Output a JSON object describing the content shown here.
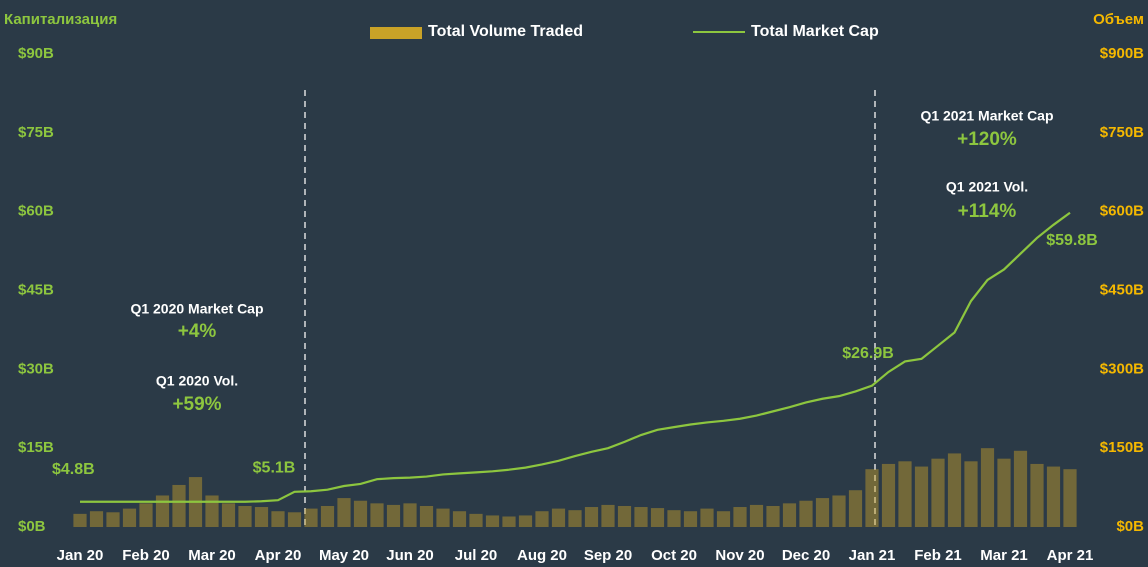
{
  "chart_data": {
    "type": "combo",
    "y_label": "Капитализация",
    "y2_label": "Объем",
    "categories": [
      "Jan 20",
      null,
      null,
      null,
      "Feb 20",
      null,
      null,
      null,
      "Mar 20",
      null,
      null,
      null,
      "Apr 20",
      null,
      null,
      null,
      "May 20",
      null,
      null,
      null,
      "Jun 20",
      null,
      null,
      null,
      "Jul 20",
      null,
      null,
      null,
      "Aug 20",
      null,
      null,
      null,
      "Sep 20",
      null,
      null,
      null,
      "Oct 20",
      null,
      null,
      null,
      "Nov 20",
      null,
      null,
      null,
      "Dec 20",
      null,
      null,
      null,
      "Jan 21",
      null,
      null,
      null,
      "Feb 21",
      null,
      null,
      null,
      "Mar 21",
      null,
      null,
      null,
      "Apr 21"
    ],
    "series": [
      {
        "name": "Total Volume Traded",
        "type": "bar",
        "axis": "y2",
        "color": "#c9a227",
        "values": [
          25,
          30,
          28,
          35,
          45,
          60,
          80,
          95,
          60,
          45,
          40,
          38,
          30,
          28,
          35,
          40,
          55,
          50,
          45,
          42,
          45,
          40,
          35,
          30,
          25,
          22,
          20,
          22,
          30,
          35,
          32,
          38,
          42,
          40,
          38,
          36,
          32,
          30,
          35,
          30,
          38,
          42,
          40,
          45,
          50,
          55,
          60,
          70,
          110,
          120,
          125,
          115,
          130,
          140,
          125,
          150,
          130,
          145,
          120,
          115,
          110
        ]
      },
      {
        "name": "Total Market Cap",
        "type": "line",
        "axis": "y",
        "color": "#8dc63f",
        "values": [
          4.8,
          4.8,
          4.8,
          4.8,
          4.8,
          4.8,
          4.8,
          4.8,
          4.8,
          4.8,
          4.8,
          4.9,
          5.1,
          6.7,
          6.8,
          7.1,
          7.8,
          8.2,
          9.1,
          9.3,
          9.4,
          9.6,
          10.0,
          10.2,
          10.4,
          10.6,
          10.9,
          11.3,
          11.9,
          12.6,
          13.5,
          14.3,
          15.0,
          16.2,
          17.5,
          18.5,
          19.0,
          19.5,
          19.9,
          20.2,
          20.6,
          21.2,
          22.0,
          22.8,
          23.7,
          24.4,
          24.9,
          25.8,
          26.9,
          29.5,
          31.5,
          32.0,
          34.5,
          37.0,
          43.0,
          47.0,
          49.0,
          52.0,
          55.0,
          57.5,
          59.8
        ],
        "value_labels": [
          "$4.8B",
          null,
          null,
          null,
          null,
          null,
          null,
          null,
          null,
          null,
          null,
          null,
          "$5.1B",
          null,
          null,
          null,
          null,
          null,
          null,
          null,
          null,
          null,
          null,
          null,
          null,
          null,
          null,
          null,
          null,
          null,
          null,
          null,
          null,
          null,
          null,
          null,
          null,
          null,
          null,
          null,
          null,
          null,
          null,
          null,
          null,
          null,
          null,
          null,
          "$26.9B",
          null,
          null,
          null,
          null,
          null,
          null,
          null,
          null,
          null,
          null,
          null,
          "$59.8B"
        ]
      }
    ],
    "ylim": [
      0,
      90
    ],
    "yticks": [
      {
        "value": 0,
        "label": "$0B"
      },
      {
        "value": 15,
        "label": "$15B"
      },
      {
        "value": 30,
        "label": "$30B"
      },
      {
        "value": 45,
        "label": "$45B"
      },
      {
        "value": 60,
        "label": "$60B"
      },
      {
        "value": 75,
        "label": "$75B"
      },
      {
        "value": 90,
        "label": "$90B"
      }
    ],
    "y2lim": [
      0,
      900
    ],
    "y2ticks": [
      {
        "value": 0,
        "label": "$0B"
      },
      {
        "value": 150,
        "label": "$150B"
      },
      {
        "value": 300,
        "label": "$300B"
      },
      {
        "value": 450,
        "label": "$450B"
      },
      {
        "value": 600,
        "label": "$600B"
      },
      {
        "value": 750,
        "label": "$750B"
      },
      {
        "value": 900,
        "label": "$900B"
      }
    ],
    "annotations": [
      {
        "label": "Q1 2020 Market Cap",
        "value": "+4%"
      },
      {
        "label": "Q1 2020 Vol.",
        "value": "+59%"
      },
      {
        "label": "Q1 2021 Market Cap",
        "value": "+120%"
      },
      {
        "label": "Q1 2021 Vol.",
        "value": "+114%"
      }
    ]
  }
}
